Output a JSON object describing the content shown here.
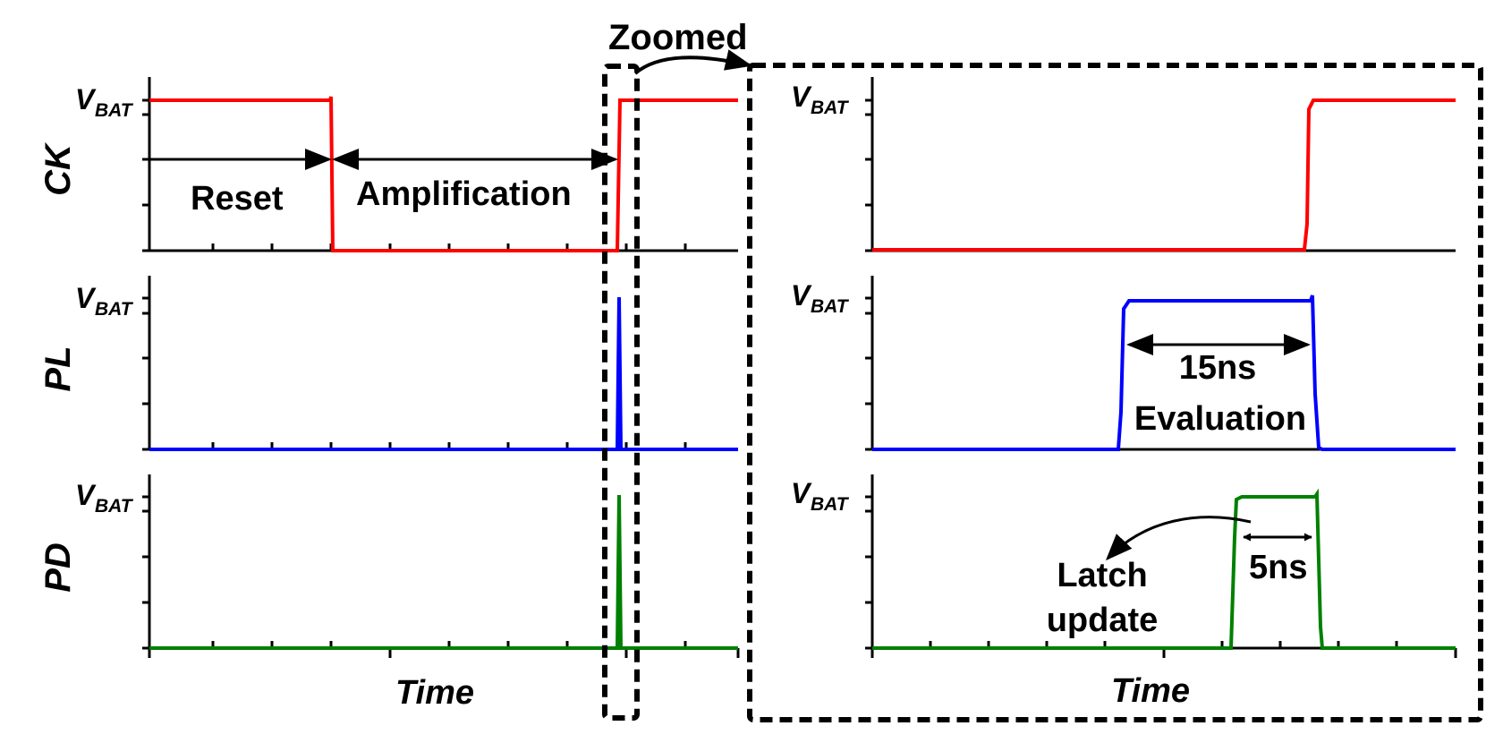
{
  "zoom_label": "Zoomed",
  "left_panels": {
    "x_label": "Time",
    "rows": [
      {
        "signal": "CK",
        "level_label": "V",
        "level_sub": "BAT",
        "color": "#ff0000",
        "annotations": {
          "reset": "Reset",
          "amplification": "Amplification"
        }
      },
      {
        "signal": "PL",
        "level_label": "V",
        "level_sub": "BAT",
        "color": "#0000ff"
      },
      {
        "signal": "PD",
        "level_label": "V",
        "level_sub": "BAT",
        "color": "#008000"
      }
    ]
  },
  "right_panels": {
    "x_label": "Time",
    "rows": [
      {
        "level_label": "V",
        "level_sub": "BAT",
        "color": "#ff0000"
      },
      {
        "level_label": "V",
        "level_sub": "BAT",
        "color": "#0000ff",
        "annotations": {
          "duration": "15ns",
          "phase": "Evaluation"
        }
      },
      {
        "level_label": "V",
        "level_sub": "BAT",
        "color": "#008000",
        "annotations": {
          "duration": "5ns",
          "phase_line1": "Latch",
          "phase_line2": "update"
        }
      }
    ]
  }
}
